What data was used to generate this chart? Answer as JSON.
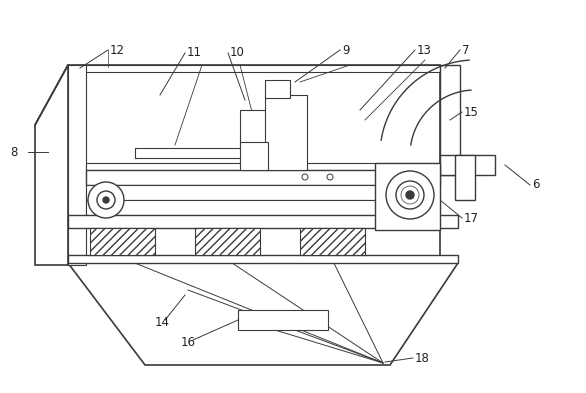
{
  "figsize": [
    5.86,
    3.93
  ],
  "dpi": 100,
  "lc": "#3a3a3a",
  "lw": 1.0,
  "bg": "white",
  "label_fs": 8.5,
  "label_color": "#222222"
}
